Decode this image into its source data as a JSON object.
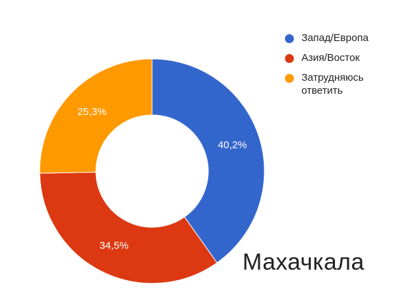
{
  "chart_data": {
    "type": "donut",
    "title": "Махачкала",
    "categories": [
      "Запад/Европа",
      "Азия/Восток",
      "Затрудняюсь ответить"
    ],
    "values": [
      40.2,
      34.5,
      25.3
    ],
    "value_labels": [
      "40,2%",
      "34,5%",
      "25,3%"
    ],
    "colors": [
      "#3366cc",
      "#dc3912",
      "#ff9900"
    ],
    "legend": "right"
  }
}
